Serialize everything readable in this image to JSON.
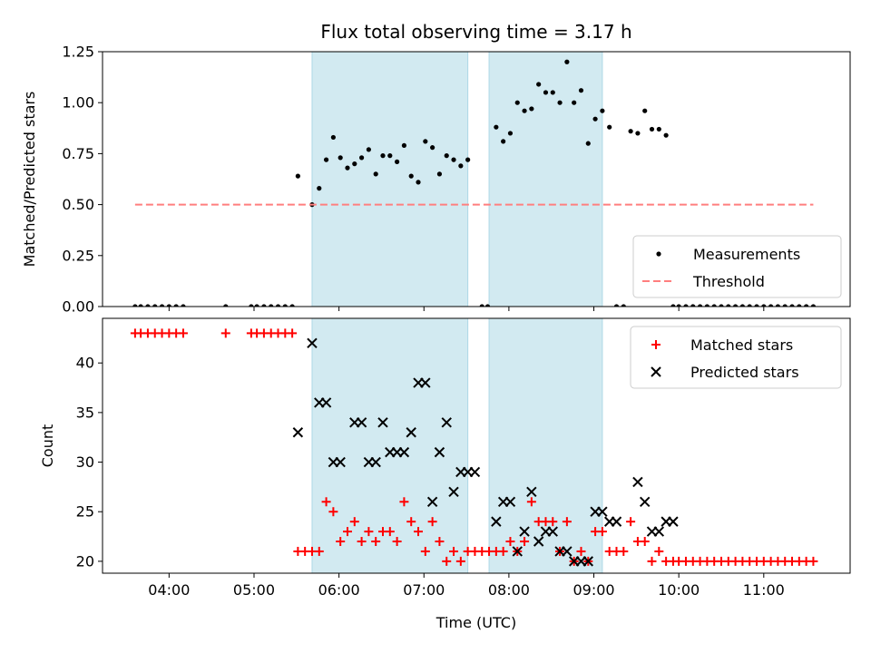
{
  "chart_data": {
    "type": "scatter",
    "title": "Flux total observing time = 3.17 h",
    "xlabel": "Time (UTC)",
    "x_ticks": [
      "04:00",
      "05:00",
      "06:00",
      "07:00",
      "08:00",
      "09:00",
      "10:00",
      "11:00"
    ],
    "colors": {
      "measurement": "#000000",
      "threshold": "#ff7f7f",
      "matched": "#ff0000",
      "predicted": "#000000",
      "shade": "#add8e6"
    },
    "shaded_intervals": [
      [
        "05:41",
        "07:31"
      ],
      [
        "07:46",
        "09:06"
      ]
    ],
    "panels": [
      {
        "ylabel": "Matched/Predicted stars",
        "ylim": [
          0,
          1.25
        ],
        "y_ticks": [
          "0.00",
          "0.25",
          "0.50",
          "0.75",
          "1.00",
          "1.25"
        ],
        "legend_position": "lower right",
        "series": [
          {
            "name": "Measurements",
            "marker": "dot",
            "points": [
              [
                "03:36",
                0
              ],
              [
                "03:40",
                0
              ],
              [
                "03:45",
                0
              ],
              [
                "03:50",
                0
              ],
              [
                "03:55",
                0
              ],
              [
                "04:00",
                0
              ],
              [
                "04:05",
                0
              ],
              [
                "04:10",
                0
              ],
              [
                "04:40",
                0
              ],
              [
                "04:58",
                0
              ],
              [
                "05:02",
                0
              ],
              [
                "05:07",
                0
              ],
              [
                "05:12",
                0
              ],
              [
                "05:17",
                0
              ],
              [
                "05:22",
                0
              ],
              [
                "05:27",
                0
              ],
              [
                "05:31",
                0.64
              ],
              [
                "05:41",
                0.5
              ],
              [
                "05:46",
                0.58
              ],
              [
                "05:51",
                0.72
              ],
              [
                "05:56",
                0.83
              ],
              [
                "06:01",
                0.73
              ],
              [
                "06:06",
                0.68
              ],
              [
                "06:11",
                0.7
              ],
              [
                "06:16",
                0.73
              ],
              [
                "06:21",
                0.77
              ],
              [
                "06:26",
                0.65
              ],
              [
                "06:31",
                0.74
              ],
              [
                "06:36",
                0.74
              ],
              [
                "06:41",
                0.71
              ],
              [
                "06:46",
                0.79
              ],
              [
                "06:51",
                0.64
              ],
              [
                "06:56",
                0.61
              ],
              [
                "07:01",
                0.81
              ],
              [
                "07:06",
                0.78
              ],
              [
                "07:11",
                0.65
              ],
              [
                "07:16",
                0.74
              ],
              [
                "07:21",
                0.72
              ],
              [
                "07:26",
                0.69
              ],
              [
                "07:31",
                0.72
              ],
              [
                "07:41",
                0
              ],
              [
                "07:45",
                0
              ],
              [
                "07:51",
                0.88
              ],
              [
                "07:56",
                0.81
              ],
              [
                "08:01",
                0.85
              ],
              [
                "08:06",
                1.0
              ],
              [
                "08:11",
                0.96
              ],
              [
                "08:16",
                0.97
              ],
              [
                "08:21",
                1.09
              ],
              [
                "08:26",
                1.05
              ],
              [
                "08:31",
                1.05
              ],
              [
                "08:36",
                1.0
              ],
              [
                "08:41",
                1.2
              ],
              [
                "08:46",
                1.0
              ],
              [
                "08:51",
                1.06
              ],
              [
                "08:56",
                0.8
              ],
              [
                "09:01",
                0.92
              ],
              [
                "09:06",
                0.96
              ],
              [
                "09:11",
                0.88
              ],
              [
                "09:16",
                0
              ],
              [
                "09:21",
                0
              ],
              [
                "09:26",
                0.86
              ],
              [
                "09:31",
                0.85
              ],
              [
                "09:36",
                0.96
              ],
              [
                "09:41",
                0.87
              ],
              [
                "09:46",
                0.87
              ],
              [
                "09:51",
                0.84
              ],
              [
                "09:56",
                0
              ],
              [
                "10:00",
                0
              ],
              [
                "10:05",
                0
              ],
              [
                "10:10",
                0
              ],
              [
                "10:15",
                0
              ],
              [
                "10:20",
                0
              ],
              [
                "10:25",
                0
              ],
              [
                "10:30",
                0
              ],
              [
                "10:35",
                0
              ],
              [
                "10:40",
                0
              ],
              [
                "10:45",
                0
              ],
              [
                "10:50",
                0
              ],
              [
                "10:55",
                0
              ],
              [
                "11:00",
                0
              ],
              [
                "11:05",
                0
              ],
              [
                "11:10",
                0
              ],
              [
                "11:15",
                0
              ],
              [
                "11:20",
                0
              ],
              [
                "11:25",
                0
              ],
              [
                "11:30",
                0
              ],
              [
                "11:35",
                0
              ]
            ]
          },
          {
            "name": "Threshold",
            "marker": "dashed-line",
            "points": [
              [
                "03:36",
                0.5
              ],
              [
                "11:35",
                0.5
              ]
            ]
          }
        ]
      },
      {
        "ylabel": "Count",
        "ylim": [
          18.8,
          44.5
        ],
        "y_ticks": [
          "20",
          "25",
          "30",
          "35",
          "40"
        ],
        "legend_position": "upper right",
        "series": [
          {
            "name": "Matched stars",
            "marker": "plus",
            "points": [
              [
                "03:36",
                43
              ],
              [
                "03:40",
                43
              ],
              [
                "03:45",
                43
              ],
              [
                "03:50",
                43
              ],
              [
                "03:55",
                43
              ],
              [
                "04:00",
                43
              ],
              [
                "04:05",
                43
              ],
              [
                "04:10",
                43
              ],
              [
                "04:40",
                43
              ],
              [
                "04:58",
                43
              ],
              [
                "05:02",
                43
              ],
              [
                "05:07",
                43
              ],
              [
                "05:12",
                43
              ],
              [
                "05:17",
                43
              ],
              [
                "05:22",
                43
              ],
              [
                "05:27",
                43
              ],
              [
                "05:31",
                21
              ],
              [
                "05:36",
                21
              ],
              [
                "05:41",
                21
              ],
              [
                "05:46",
                21
              ],
              [
                "05:51",
                26
              ],
              [
                "05:56",
                25
              ],
              [
                "06:01",
                22
              ],
              [
                "06:06",
                23
              ],
              [
                "06:11",
                24
              ],
              [
                "06:16",
                22
              ],
              [
                "06:21",
                23
              ],
              [
                "06:26",
                22
              ],
              [
                "06:31",
                23
              ],
              [
                "06:36",
                23
              ],
              [
                "06:41",
                22
              ],
              [
                "06:46",
                26
              ],
              [
                "06:51",
                24
              ],
              [
                "06:56",
                23
              ],
              [
                "07:01",
                21
              ],
              [
                "07:06",
                24
              ],
              [
                "07:11",
                22
              ],
              [
                "07:16",
                20
              ],
              [
                "07:21",
                21
              ],
              [
                "07:26",
                20
              ],
              [
                "07:31",
                21
              ],
              [
                "07:36",
                21
              ],
              [
                "07:41",
                21
              ],
              [
                "07:46",
                21
              ],
              [
                "07:51",
                21
              ],
              [
                "07:56",
                21
              ],
              [
                "08:01",
                22
              ],
              [
                "08:06",
                21
              ],
              [
                "08:11",
                22
              ],
              [
                "08:16",
                26
              ],
              [
                "08:21",
                24
              ],
              [
                "08:26",
                24
              ],
              [
                "08:31",
                24
              ],
              [
                "08:36",
                21
              ],
              [
                "08:41",
                24
              ],
              [
                "08:46",
                20
              ],
              [
                "08:51",
                21
              ],
              [
                "08:56",
                20
              ],
              [
                "09:01",
                23
              ],
              [
                "09:06",
                23
              ],
              [
                "09:11",
                21
              ],
              [
                "09:16",
                21
              ],
              [
                "09:21",
                21
              ],
              [
                "09:26",
                24
              ],
              [
                "09:31",
                22
              ],
              [
                "09:36",
                22
              ],
              [
                "09:41",
                20
              ],
              [
                "09:46",
                21
              ],
              [
                "09:51",
                20
              ],
              [
                "09:56",
                20
              ],
              [
                "10:00",
                20
              ],
              [
                "10:05",
                20
              ],
              [
                "10:10",
                20
              ],
              [
                "10:15",
                20
              ],
              [
                "10:20",
                20
              ],
              [
                "10:25",
                20
              ],
              [
                "10:30",
                20
              ],
              [
                "10:35",
                20
              ],
              [
                "10:40",
                20
              ],
              [
                "10:45",
                20
              ],
              [
                "10:50",
                20
              ],
              [
                "10:55",
                20
              ],
              [
                "11:00",
                20
              ],
              [
                "11:05",
                20
              ],
              [
                "11:10",
                20
              ],
              [
                "11:15",
                20
              ],
              [
                "11:20",
                20
              ],
              [
                "11:25",
                20
              ],
              [
                "11:30",
                20
              ],
              [
                "11:35",
                20
              ]
            ]
          },
          {
            "name": "Predicted stars",
            "marker": "x",
            "points": [
              [
                "05:31",
                33
              ],
              [
                "05:41",
                42
              ],
              [
                "05:46",
                36
              ],
              [
                "05:51",
                36
              ],
              [
                "05:56",
                30
              ],
              [
                "06:01",
                30
              ],
              [
                "06:11",
                34
              ],
              [
                "06:16",
                34
              ],
              [
                "06:21",
                30
              ],
              [
                "06:26",
                30
              ],
              [
                "06:31",
                34
              ],
              [
                "06:36",
                31
              ],
              [
                "06:41",
                31
              ],
              [
                "06:46",
                31
              ],
              [
                "06:51",
                33
              ],
              [
                "06:56",
                38
              ],
              [
                "07:01",
                38
              ],
              [
                "07:06",
                26
              ],
              [
                "07:11",
                31
              ],
              [
                "07:16",
                34
              ],
              [
                "07:21",
                27
              ],
              [
                "07:26",
                29
              ],
              [
                "07:31",
                29
              ],
              [
                "07:36",
                29
              ],
              [
                "07:51",
                24
              ],
              [
                "07:56",
                26
              ],
              [
                "08:01",
                26
              ],
              [
                "08:06",
                21
              ],
              [
                "08:11",
                23
              ],
              [
                "08:16",
                27
              ],
              [
                "08:21",
                22
              ],
              [
                "08:26",
                23
              ],
              [
                "08:31",
                23
              ],
              [
                "08:36",
                21
              ],
              [
                "08:41",
                21
              ],
              [
                "08:46",
                20
              ],
              [
                "08:51",
                20
              ],
              [
                "08:56",
                20
              ],
              [
                "09:01",
                25
              ],
              [
                "09:06",
                25
              ],
              [
                "09:11",
                24
              ],
              [
                "09:16",
                24
              ],
              [
                "09:31",
                28
              ],
              [
                "09:36",
                26
              ],
              [
                "09:41",
                23
              ],
              [
                "09:46",
                23
              ],
              [
                "09:51",
                24
              ],
              [
                "09:56",
                24
              ]
            ]
          }
        ]
      }
    ]
  }
}
